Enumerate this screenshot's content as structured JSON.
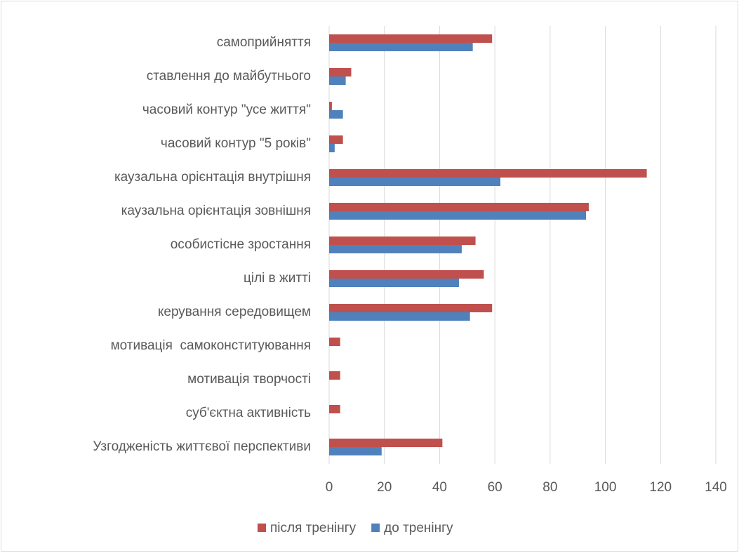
{
  "chart_data": {
    "type": "barh",
    "categories": [
      "самоприйняття",
      "ставлення до майбутнього",
      "часовий контур \"усе життя\"",
      "часовий контур \"5 років\"",
      "каузальна орієнтація внутрішня",
      "каузальна орієнтація зовнішня",
      "особистісне зростання",
      "цілі в житті",
      "керування середовищем",
      "мотивація  самоконституювання",
      "мотивація творчості",
      "суб'єктна активність",
      "Узгодженість життєвої перспективи"
    ],
    "series": [
      {
        "name": "після тренінгу",
        "color": "#c0504d",
        "values": [
          59,
          8,
          1,
          5,
          115,
          94,
          53,
          56,
          59,
          4,
          4,
          4,
          41
        ]
      },
      {
        "name": "до тренінгу",
        "color": "#4f81bd",
        "values": [
          52,
          6,
          5,
          2,
          62,
          93,
          48,
          47,
          51,
          0,
          0,
          0,
          19
        ]
      }
    ],
    "xlim": [
      0,
      140
    ],
    "xticks": [
      0,
      20,
      40,
      60,
      80,
      100,
      120,
      140
    ],
    "grid": true,
    "legend": "bottom"
  }
}
